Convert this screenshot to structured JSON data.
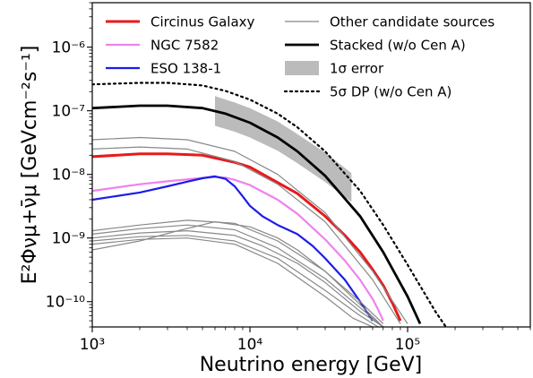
{
  "chart_data": {
    "type": "line",
    "xlabel": "Neutrino energy [GeV]",
    "ylabel": "E²Φνμ+ν̄μ [GeVcm⁻²s⁻¹]",
    "xscale": "log",
    "yscale": "log",
    "xlim": [
      1000,
      600000
    ],
    "ylim": [
      4e-11,
      5e-06
    ],
    "grid": false,
    "legend_position": "top",
    "x_ticks": [
      {
        "value": 1000,
        "label": "10³"
      },
      {
        "value": 10000,
        "label": "10⁴"
      },
      {
        "value": 100000,
        "label": "10⁵"
      }
    ],
    "y_ticks": [
      {
        "value": 1e-10,
        "label": "10⁻¹⁰"
      },
      {
        "value": 1e-09,
        "label": "10⁻⁹"
      },
      {
        "value": 1e-08,
        "label": "10⁻⁸"
      },
      {
        "value": 1e-07,
        "label": "10⁻⁷"
      },
      {
        "value": 1e-06,
        "label": "10⁻⁶"
      }
    ],
    "band": {
      "name": "1σ error",
      "color": "#bbbbbb",
      "x": [
        6000,
        8000,
        10000,
        15000,
        20000,
        30000,
        44000
      ],
      "upper": [
        1.7e-07,
        1.35e-07,
        1.1e-07,
        6.8e-08,
        4.3e-08,
        2.2e-08,
        1.05e-08
      ],
      "lower": [
        5.8e-08,
        4.7e-08,
        3.8e-08,
        2.35e-08,
        1.5e-08,
        7.6e-09,
        3.7e-09
      ]
    },
    "series": [
      {
        "name": "Circinus Galaxy",
        "color": "#e8191b",
        "width": 3,
        "dash": "",
        "x": [
          1000,
          2000,
          3000,
          5000,
          8000,
          10000,
          20000,
          30000,
          40000,
          50000,
          60000,
          70000,
          80000,
          90000
        ],
        "y": [
          1.9e-08,
          2.1e-08,
          2.1e-08,
          2e-08,
          1.55e-08,
          1.3e-08,
          5e-09,
          2.2e-09,
          1.1e-09,
          6e-10,
          3.2e-10,
          1.8e-10,
          9.5e-11,
          5e-11
        ]
      },
      {
        "name": "NGC 7582",
        "color": "#ee82ee",
        "width": 2.2,
        "dash": "",
        "x": [
          1000,
          2000,
          3000,
          5000,
          6000,
          7000,
          8000,
          10000,
          15000,
          20000,
          30000,
          40000,
          50000,
          60000,
          65000,
          70000
        ],
        "y": [
          5.5e-09,
          7e-09,
          7.8e-09,
          8.8e-09,
          9.1e-09,
          8.9e-09,
          8.2e-09,
          6.8e-09,
          4e-09,
          2.4e-09,
          9.5e-10,
          4.4e-10,
          2.2e-10,
          1.1e-10,
          7.5e-11,
          5e-11
        ]
      },
      {
        "name": "ESO 138-1",
        "color": "#1c1ce8",
        "width": 2.2,
        "dash": "",
        "x": [
          1000,
          2000,
          3000,
          4000,
          5000,
          6000,
          7000,
          8000,
          9000,
          10000,
          12000,
          15000,
          20000,
          25000,
          30000,
          40000,
          50000,
          60000
        ],
        "y": [
          4e-09,
          5.2e-09,
          6.5e-09,
          7.7e-09,
          8.7e-09,
          9.3e-09,
          8.5e-09,
          6.5e-09,
          4.5e-09,
          3.2e-09,
          2.2e-09,
          1.6e-09,
          1.15e-09,
          7.5e-10,
          4.8e-10,
          2.2e-10,
          1e-10,
          5e-11
        ]
      },
      {
        "name": "Other candidate sources",
        "color": "#888888",
        "width": 1.2,
        "dash": "",
        "x": [
          1000,
          2000,
          4000,
          8000,
          15000,
          30000,
          60000,
          100000
        ],
        "y": [
          3.5e-08,
          3.8e-08,
          3.5e-08,
          2.3e-08,
          1e-08,
          2.5e-09,
          3e-10,
          4.5e-11
        ]
      },
      {
        "name": "",
        "color": "#888888",
        "width": 1.2,
        "dash": "",
        "x": [
          1000,
          2000,
          4000,
          8000,
          15000,
          30000,
          60000,
          90000
        ],
        "y": [
          2.5e-08,
          2.7e-08,
          2.5e-08,
          1.6e-08,
          7e-09,
          1.8e-09,
          2.2e-10,
          4.5e-11
        ]
      },
      {
        "name": "",
        "color": "#888888",
        "width": 1.2,
        "dash": "",
        "x": [
          1000,
          2000,
          4000,
          8000,
          15000,
          30000,
          50000,
          70000
        ],
        "y": [
          1.3e-09,
          1.6e-09,
          1.9e-09,
          1.7e-09,
          9e-10,
          3e-10,
          1e-10,
          4.5e-11
        ]
      },
      {
        "name": "",
        "color": "#888888",
        "width": 1.2,
        "dash": "",
        "x": [
          1000,
          2000,
          4000,
          8000,
          15000,
          30000,
          50000,
          70000
        ],
        "y": [
          1.15e-09,
          1.4e-09,
          1.6e-09,
          1.35e-09,
          7e-10,
          2.3e-10,
          8e-11,
          4e-11
        ]
      },
      {
        "name": "",
        "color": "#888888",
        "width": 1.2,
        "dash": "",
        "x": [
          1000,
          2000,
          4000,
          8000,
          12000,
          20000,
          30000,
          50000,
          70000
        ],
        "y": [
          1e-09,
          1.2e-09,
          1.3e-09,
          1.1e-09,
          7.5e-10,
          4e-10,
          2e-10,
          7e-11,
          4e-11
        ]
      },
      {
        "name": "",
        "color": "#888888",
        "width": 1.2,
        "dash": "",
        "x": [
          1000,
          2000,
          4000,
          8000,
          15000,
          30000,
          50000,
          65000
        ],
        "y": [
          9e-10,
          1.05e-09,
          1.1e-09,
          9e-10,
          4.8e-10,
          1.5e-10,
          6e-11,
          4e-11
        ]
      },
      {
        "name": "",
        "color": "#888888",
        "width": 1.2,
        "dash": "",
        "x": [
          1000,
          2000,
          4000,
          8000,
          15000,
          30000,
          45000,
          60000
        ],
        "y": [
          8e-10,
          9.5e-10,
          1e-09,
          8e-10,
          4e-10,
          1.2e-10,
          5.5e-11,
          4e-11
        ]
      },
      {
        "name": "",
        "color": "#888888",
        "width": 1.2,
        "dash": "",
        "x": [
          1000,
          2000,
          3500,
          6000,
          10000,
          15000,
          20000,
          30000,
          50000,
          70000
        ],
        "y": [
          6.5e-10,
          9e-10,
          1.3e-09,
          1.8e-09,
          1.5e-09,
          1e-09,
          6.5e-10,
          3e-10,
          9e-11,
          4e-11
        ]
      },
      {
        "name": "Stacked (w/o Cen A)",
        "color": "#000000",
        "width": 2.8,
        "dash": "",
        "x": [
          1000,
          2000,
          3000,
          5000,
          7000,
          10000,
          15000,
          20000,
          30000,
          50000,
          70000,
          100000,
          120000
        ],
        "y": [
          1.1e-07,
          1.2e-07,
          1.2e-07,
          1.1e-07,
          9e-08,
          6.5e-08,
          3.8e-08,
          2.3e-08,
          9.5e-09,
          2.2e-09,
          6e-10,
          1.2e-10,
          4.5e-11
        ]
      },
      {
        "name": "5σ DP (w/o Cen A)",
        "color": "#000000",
        "width": 2.2,
        "dash": "2,4",
        "x": [
          1000,
          2000,
          3000,
          5000,
          7000,
          10000,
          15000,
          20000,
          30000,
          50000,
          70000,
          100000,
          150000,
          175000
        ],
        "y": [
          2.6e-07,
          2.75e-07,
          2.75e-07,
          2.5e-07,
          2.05e-07,
          1.5e-07,
          9e-08,
          5.5e-08,
          2.3e-08,
          5.5e-09,
          1.6e-09,
          3.8e-10,
          7e-11,
          4e-11
        ]
      }
    ],
    "legend": [
      {
        "label": "Circinus Galaxy",
        "kind": "line",
        "color": "#e8191b",
        "width": 3,
        "dash": ""
      },
      {
        "label": "NGC 7582",
        "kind": "line",
        "color": "#ee82ee",
        "width": 2.2,
        "dash": ""
      },
      {
        "label": "ESO 138-1",
        "kind": "line",
        "color": "#1c1ce8",
        "width": 2.2,
        "dash": ""
      },
      {
        "label": "Other candidate sources",
        "kind": "line",
        "color": "#888888",
        "width": 1.2,
        "dash": ""
      },
      {
        "label": "Stacked (w/o Cen A)",
        "kind": "line",
        "color": "#000000",
        "width": 2.8,
        "dash": ""
      },
      {
        "label": "1σ error",
        "kind": "patch",
        "color": "#bbbbbb",
        "width": 0,
        "dash": ""
      },
      {
        "label": "5σ DP (w/o Cen A)",
        "kind": "line",
        "color": "#000000",
        "width": 2.2,
        "dash": "2,4"
      }
    ]
  }
}
